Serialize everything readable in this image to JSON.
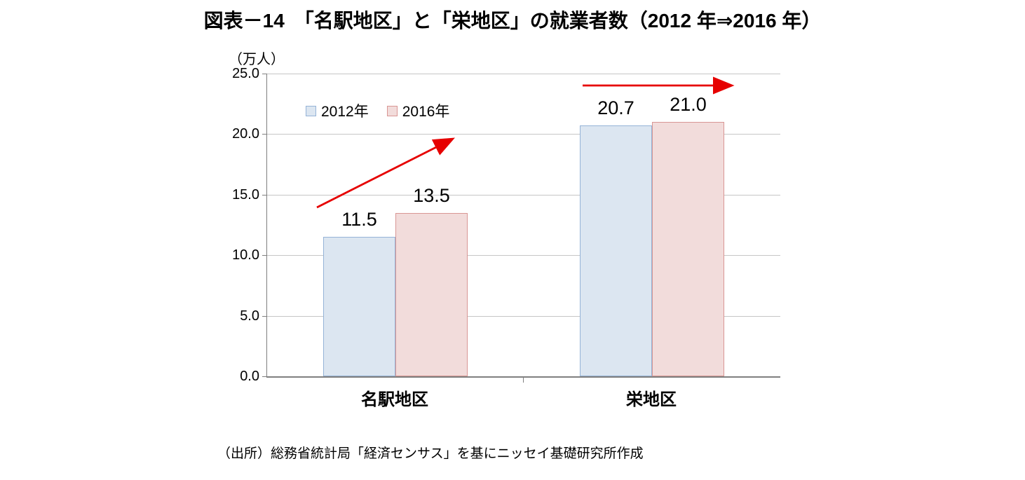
{
  "chart_data": {
    "type": "bar",
    "title": "図表－14　「名駅地区」と「栄地区」の就業者数（2012 年⇒2016 年）",
    "unit_label": "（万人）",
    "categories": [
      "名駅地区",
      "栄地区"
    ],
    "series": [
      {
        "name": "2012年",
        "values": [
          11.5,
          20.7
        ],
        "fill": "#dce6f1",
        "border": "#95b3d7"
      },
      {
        "name": "2016年",
        "values": [
          13.5,
          21.0
        ],
        "fill": "#f2dcdb",
        "border": "#d99694"
      }
    ],
    "data_labels": [
      [
        "11.5",
        "20.7"
      ],
      [
        "13.5",
        "21.0"
      ]
    ],
    "ylim": [
      0,
      25
    ],
    "ytick_step": 5.0,
    "ytick_labels": [
      "0.0",
      "5.0",
      "10.0",
      "15.0",
      "20.0",
      "25.0"
    ],
    "grid": true,
    "legend_position": "inside-top-left",
    "annotations": [
      {
        "type": "arrow",
        "color": "#e60000",
        "from": [
          452,
          296
        ],
        "to": [
          644,
          199
        ]
      },
      {
        "type": "arrow",
        "color": "#e60000",
        "from": [
          831,
          122
        ],
        "to": [
          1042,
          122
        ]
      }
    ]
  },
  "source_note": "（出所）総務省統計局「経済センサス」を基にニッセイ基礎研究所作成"
}
